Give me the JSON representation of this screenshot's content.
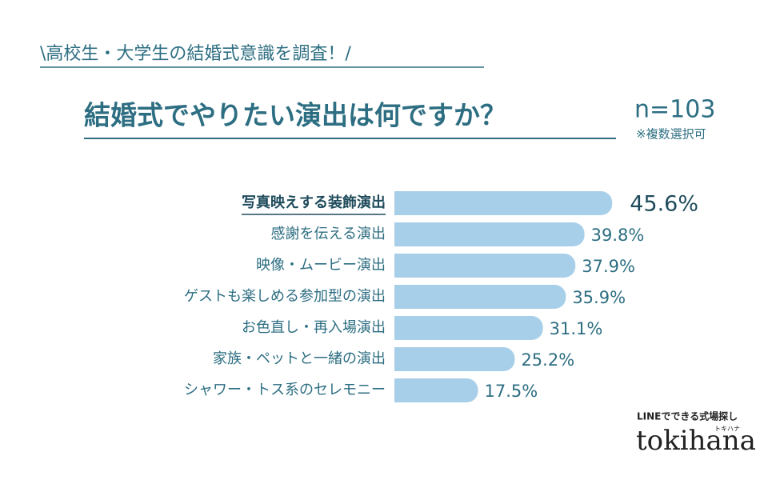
{
  "chart_data": {
    "type": "bar",
    "orientation": "horizontal",
    "subtitle": "\\高校生・大学生の結婚式意識を調査！/",
    "title": "結婚式でやりたい演出は何ですか？",
    "sample_size": "n=103",
    "note": "※複数選択可",
    "categories": [
      "写真映えする装飾演出",
      "感謝を伝える演出",
      "映像・ムービー演出",
      "ゲストも楽しめる参加型の演出",
      "お色直し・再入場演出",
      "家族・ペットと一緒の演出",
      "シャワー・トス系のセレモニー"
    ],
    "values": [
      45.6,
      39.8,
      37.9,
      35.9,
      31.1,
      25.2,
      17.5
    ],
    "value_labels": [
      "45.6%",
      "39.8%",
      "37.9%",
      "35.9%",
      "31.1%",
      "25.2%",
      "17.5%"
    ],
    "color": "#a8cfe9",
    "text_color": "#2d6e82",
    "highlight": 0
  },
  "brand": {
    "tagline": "LINEでできる式場探し",
    "name": "tokihana",
    "kana": "トキハナ"
  }
}
